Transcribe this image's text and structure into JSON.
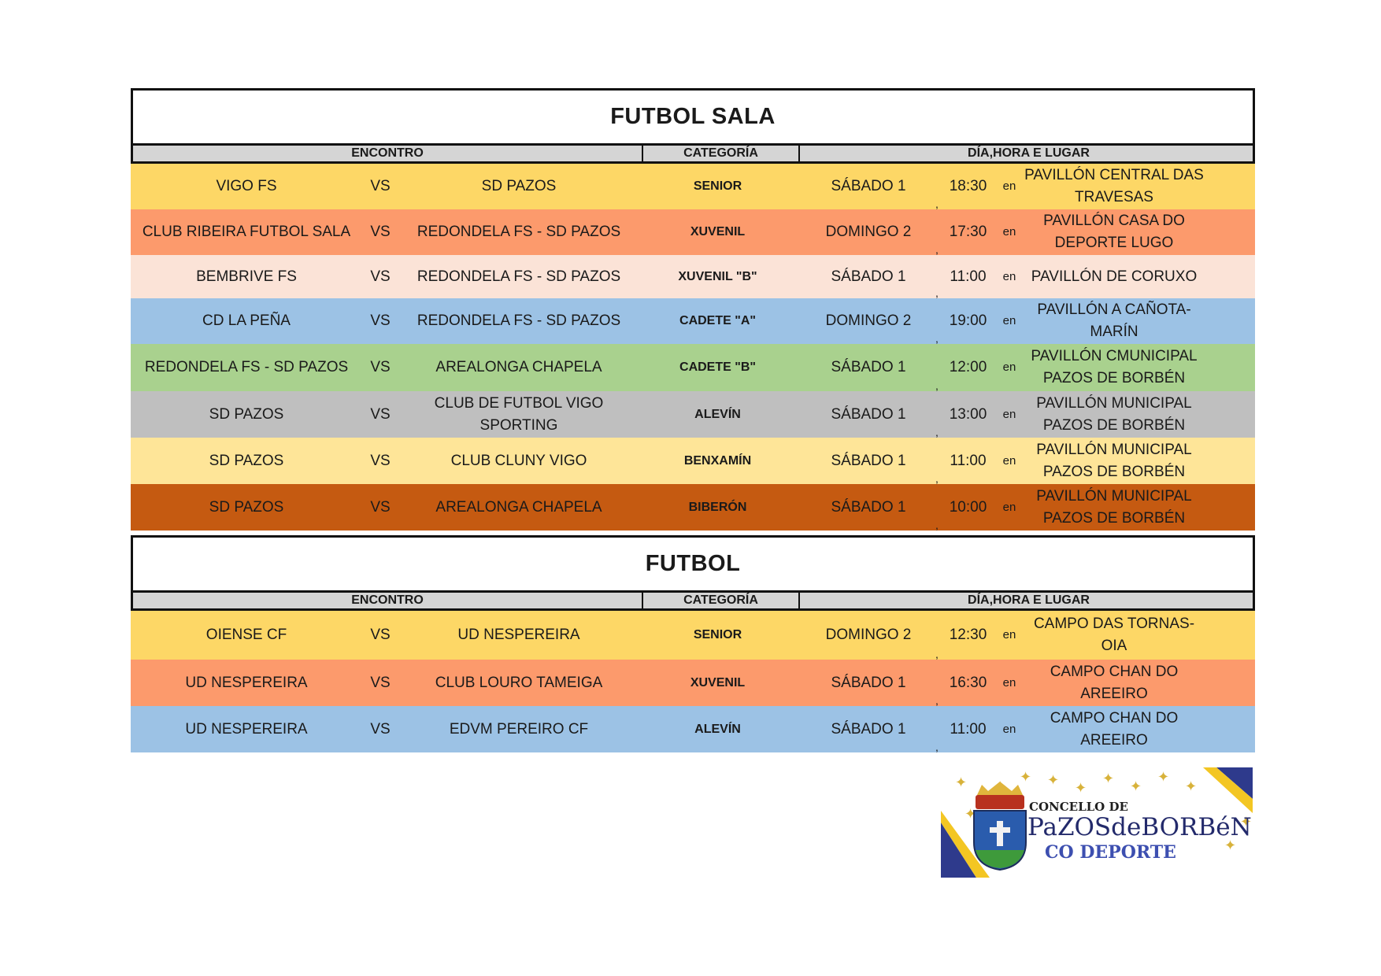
{
  "sections": {
    "futbol_sala": {
      "title": "FUTBOL SALA",
      "headers": [
        "ENCONTRO",
        "CATEGORÍA",
        "DÍA,HORA E LUGAR"
      ],
      "rows": [
        {
          "home": "VIGO FS",
          "vs": "VS",
          "away": "SD PAZOS",
          "category": "SENIOR",
          "day": "SÁBADO 1",
          "comma": ",",
          "time": "18:30",
          "en": "en",
          "venue": "PAVILLÓN CENTRAL DAS TRAVESAS",
          "color": "#fdd766"
        },
        {
          "home": "CLUB RIBEIRA FUTBOL SALA",
          "vs": "VS",
          "away": "REDONDELA FS - SD PAZOS",
          "category": "XUVENIL",
          "day": "DOMINGO 2",
          "comma": ",",
          "time": "17:30",
          "en": "en",
          "venue": "PAVILLÓN CASA DO DEPORTE LUGO",
          "color": "#fc9a6c"
        },
        {
          "home": "BEMBRIVE FS",
          "vs": "VS",
          "away": "REDONDELA FS - SD PAZOS",
          "category": "XUVENIL \"B\"",
          "day": "SÁBADO 1",
          "comma": ",",
          "time": "11:00",
          "en": "en",
          "venue": "PAVILLÓN DE CORUXO",
          "color": "#fbe3d7"
        },
        {
          "home": "CD LA PEÑA",
          "vs": "VS",
          "away": "REDONDELA FS - SD PAZOS",
          "category": "CADETE \"A\"",
          "day": "DOMINGO 2",
          "comma": ",",
          "time": "19:00",
          "en": "en",
          "venue": "PAVILLÓN A CAÑOTA-MARÍN",
          "color": "#9cc2e5"
        },
        {
          "home": "REDONDELA FS - SD PAZOS",
          "vs": "VS",
          "away": "AREALONGA CHAPELA",
          "category": "CADETE \"B\"",
          "day": "SÁBADO 1",
          "comma": ",",
          "time": "12:00",
          "en": "en",
          "venue": "PAVILLÓN CMUNICIPAL PAZOS DE BORBÉN",
          "color": "#a9d18e"
        },
        {
          "home": "SD PAZOS",
          "vs": "VS",
          "away": "CLUB DE FUTBOL VIGO SPORTING",
          "category": "ALEVÍN",
          "day": "SÁBADO 1",
          "comma": ",",
          "time": "13:00",
          "en": "en",
          "venue": "PAVILLÓN MUNICIPAL PAZOS DE BORBÉN",
          "color": "#bfbfbf"
        },
        {
          "home": "SD PAZOS",
          "vs": "VS",
          "away": "CLUB CLUNY VIGO",
          "category": "BENXAMÍN",
          "day": "SÁBADO 1",
          "comma": ",",
          "time": "11:00",
          "en": "en",
          "venue": "PAVILLÓN MUNICIPAL PAZOS DE BORBÉN",
          "color": "#fee598"
        },
        {
          "home": "SD PAZOS",
          "vs": "VS",
          "away": "AREALONGA CHAPELA",
          "category": "BIBERÓN",
          "day": "SÁBADO 1",
          "comma": ",",
          "time": "10:00",
          "en": "en",
          "venue": "PAVILLÓN MUNICIPAL PAZOS DE BORBÉN",
          "color": "#c55a11"
        }
      ]
    },
    "futbol": {
      "title": "FUTBOL",
      "headers": [
        "ENCONTRO",
        "CATEGORÍA",
        "DÍA,HORA E LUGAR"
      ],
      "rows": [
        {
          "home": "OIENSE CF",
          "vs": "VS",
          "away": "UD NESPEREIRA",
          "category": "SENIOR",
          "day": "DOMINGO 2",
          "comma": ",",
          "time": "12:30",
          "en": "en",
          "venue": "CAMPO DAS TORNAS-OIA",
          "color": "#fdd766"
        },
        {
          "home": "UD NESPEREIRA",
          "vs": "VS",
          "away": "CLUB LOURO TAMEIGA",
          "category": "XUVENIL",
          "day": "SÁBADO 1",
          "comma": ",",
          "time": "16:30",
          "en": "en",
          "venue": "CAMPO CHAN DO AREEIRO",
          "color": "#fc9a6c"
        },
        {
          "home": "UD NESPEREIRA",
          "vs": "VS",
          "away": "EDVM PEREIRO CF",
          "category": "ALEVÍN",
          "day": "SÁBADO 1",
          "comma": ",",
          "time": "11:00",
          "en": "en",
          "venue": "CAMPO CHAN DO AREEIRO",
          "color": "#9cc2e5"
        }
      ]
    }
  },
  "logo": {
    "line1": "CONCELLO DE",
    "line2": "PaZOSdeBORBéN",
    "line3": "CO DEPORTE"
  }
}
